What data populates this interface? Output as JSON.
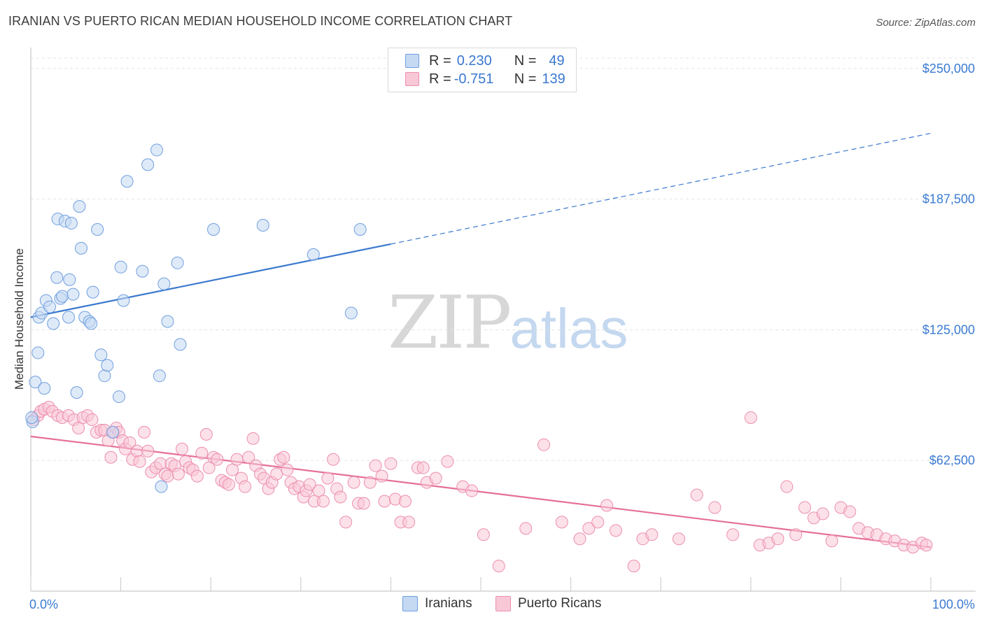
{
  "title": "IRANIAN VS PUERTO RICAN MEDIAN HOUSEHOLD INCOME CORRELATION CHART",
  "source": "Source: ZipAtlas.com",
  "watermark": {
    "zip": "ZIP",
    "atlas": "atlas"
  },
  "legend": {
    "r_label": "R =",
    "n_label": "N =",
    "series": [
      {
        "name": "Iranians",
        "r": "0.230",
        "n": "49",
        "fill": "#c5d9f3",
        "stroke": "#6f9fdf"
      },
      {
        "name": "Puerto Ricans",
        "r": "-0.751",
        "n": "139",
        "fill": "#f9c8d7",
        "stroke": "#ec8eaf"
      }
    ]
  },
  "chart_data": {
    "type": "scatter",
    "title": "IRANIAN VS PUERTO RICAN MEDIAN HOUSEHOLD INCOME CORRELATION CHART",
    "xlabel": "",
    "ylabel": "Median Household Income",
    "xlim": [
      0,
      100
    ],
    "ylim": [
      0,
      260000
    ],
    "x_tick_labels": [
      "0.0%",
      "100.0%"
    ],
    "y_ticks": [
      62500,
      125000,
      187500,
      250000
    ],
    "y_tick_labels": [
      "$62,500",
      "$125,000",
      "$187,500",
      "$250,000"
    ],
    "grid": true,
    "series": [
      {
        "name": "Iranians",
        "color": "#3a78cf",
        "trend": {
          "x0": 0,
          "y0": 131000,
          "x1": 40,
          "y1": 166000,
          "x_extend": 100,
          "y_extend": 219000
        },
        "points": [
          [
            0.2,
            81000
          ],
          [
            0.5,
            100000
          ],
          [
            0.8,
            114000
          ],
          [
            0.9,
            131000
          ],
          [
            1.2,
            133000
          ],
          [
            1.5,
            97000
          ],
          [
            1.7,
            139000
          ],
          [
            2.1,
            136000
          ],
          [
            2.5,
            128000
          ],
          [
            2.9,
            150000
          ],
          [
            3.0,
            178000
          ],
          [
            3.3,
            140000
          ],
          [
            3.5,
            141000
          ],
          [
            3.8,
            177000
          ],
          [
            4.2,
            131000
          ],
          [
            4.3,
            149000
          ],
          [
            4.5,
            176000
          ],
          [
            4.7,
            142000
          ],
          [
            5.1,
            95000
          ],
          [
            5.4,
            184000
          ],
          [
            5.6,
            164000
          ],
          [
            6.0,
            131000
          ],
          [
            6.5,
            129000
          ],
          [
            6.7,
            128000
          ],
          [
            6.9,
            143000
          ],
          [
            7.4,
            173000
          ],
          [
            7.8,
            113000
          ],
          [
            8.2,
            103000
          ],
          [
            8.5,
            108000
          ],
          [
            9.1,
            76000
          ],
          [
            9.8,
            93000
          ],
          [
            10.0,
            155000
          ],
          [
            10.3,
            139000
          ],
          [
            10.7,
            196000
          ],
          [
            12.4,
            153000
          ],
          [
            13.0,
            204000
          ],
          [
            14.0,
            211000
          ],
          [
            14.3,
            103000
          ],
          [
            14.5,
            50000
          ],
          [
            14.8,
            147000
          ],
          [
            15.2,
            129000
          ],
          [
            16.3,
            157000
          ],
          [
            16.6,
            118000
          ],
          [
            20.3,
            173000
          ],
          [
            25.8,
            175000
          ],
          [
            31.4,
            161000
          ],
          [
            35.6,
            133000
          ],
          [
            36.6,
            173000
          ],
          [
            0.1,
            83000
          ]
        ]
      },
      {
        "name": "Puerto Ricans",
        "color": "#e56f98",
        "trend": {
          "x0": 0,
          "y0": 74000,
          "x1": 100,
          "y1": 21000
        },
        "points": [
          [
            0.3,
            82000
          ],
          [
            0.8,
            84000
          ],
          [
            1.1,
            86000
          ],
          [
            1.5,
            87000
          ],
          [
            2.0,
            88000
          ],
          [
            2.4,
            86000
          ],
          [
            3.0,
            84000
          ],
          [
            3.5,
            83000
          ],
          [
            4.2,
            84000
          ],
          [
            4.8,
            82000
          ],
          [
            5.3,
            78000
          ],
          [
            5.8,
            83000
          ],
          [
            6.3,
            84000
          ],
          [
            6.8,
            82000
          ],
          [
            7.3,
            76000
          ],
          [
            7.8,
            77000
          ],
          [
            8.2,
            77000
          ],
          [
            8.6,
            72000
          ],
          [
            8.9,
            64000
          ],
          [
            9.2,
            76000
          ],
          [
            9.5,
            78000
          ],
          [
            9.8,
            76000
          ],
          [
            10.2,
            72000
          ],
          [
            10.5,
            68000
          ],
          [
            11.0,
            71000
          ],
          [
            11.3,
            63000
          ],
          [
            11.8,
            67000
          ],
          [
            12.1,
            62000
          ],
          [
            12.6,
            76000
          ],
          [
            13.0,
            67000
          ],
          [
            13.4,
            57000
          ],
          [
            13.9,
            59000
          ],
          [
            14.4,
            61000
          ],
          [
            14.9,
            56000
          ],
          [
            15.2,
            55000
          ],
          [
            15.6,
            61000
          ],
          [
            16.0,
            60000
          ],
          [
            16.4,
            56000
          ],
          [
            16.8,
            68000
          ],
          [
            17.2,
            62000
          ],
          [
            17.6,
            59000
          ],
          [
            18.0,
            58000
          ],
          [
            18.5,
            55000
          ],
          [
            19.0,
            66000
          ],
          [
            19.5,
            75000
          ],
          [
            19.8,
            59000
          ],
          [
            20.3,
            64000
          ],
          [
            20.7,
            63000
          ],
          [
            21.2,
            53000
          ],
          [
            21.6,
            52000
          ],
          [
            22.0,
            51000
          ],
          [
            22.4,
            58000
          ],
          [
            22.9,
            63000
          ],
          [
            23.4,
            54000
          ],
          [
            23.8,
            50000
          ],
          [
            24.2,
            64000
          ],
          [
            24.7,
            73000
          ],
          [
            25.0,
            60000
          ],
          [
            25.5,
            56000
          ],
          [
            25.9,
            54000
          ],
          [
            26.4,
            49000
          ],
          [
            26.8,
            52000
          ],
          [
            27.3,
            56000
          ],
          [
            27.7,
            63000
          ],
          [
            28.1,
            64000
          ],
          [
            28.5,
            58000
          ],
          [
            28.9,
            52000
          ],
          [
            29.3,
            49000
          ],
          [
            29.8,
            50000
          ],
          [
            30.3,
            45000
          ],
          [
            30.6,
            48000
          ],
          [
            31.0,
            51000
          ],
          [
            31.5,
            43000
          ],
          [
            32.0,
            48000
          ],
          [
            32.5,
            43000
          ],
          [
            33.0,
            54000
          ],
          [
            33.6,
            63000
          ],
          [
            34.0,
            49000
          ],
          [
            34.4,
            45000
          ],
          [
            35.0,
            33000
          ],
          [
            35.9,
            52000
          ],
          [
            36.4,
            42000
          ],
          [
            37.0,
            42000
          ],
          [
            37.7,
            52000
          ],
          [
            38.3,
            60000
          ],
          [
            39.0,
            55000
          ],
          [
            39.3,
            43000
          ],
          [
            40.0,
            61000
          ],
          [
            40.5,
            44000
          ],
          [
            41.1,
            33000
          ],
          [
            41.6,
            43000
          ],
          [
            42.0,
            33000
          ],
          [
            43.0,
            59000
          ],
          [
            43.6,
            59000
          ],
          [
            44.0,
            52000
          ],
          [
            45.0,
            54000
          ],
          [
            46.3,
            62000
          ],
          [
            48.0,
            50000
          ],
          [
            49.0,
            48000
          ],
          [
            50.3,
            27000
          ],
          [
            52.0,
            12000
          ],
          [
            55.0,
            30000
          ],
          [
            57.0,
            70000
          ],
          [
            59.0,
            33000
          ],
          [
            61.0,
            25000
          ],
          [
            62.0,
            30000
          ],
          [
            63.0,
            33000
          ],
          [
            64.0,
            41000
          ],
          [
            65.0,
            29000
          ],
          [
            67.0,
            12000
          ],
          [
            68.0,
            25000
          ],
          [
            69.0,
            27000
          ],
          [
            72.0,
            25000
          ],
          [
            74.0,
            46000
          ],
          [
            76.0,
            40000
          ],
          [
            78.0,
            27000
          ],
          [
            80.0,
            83000
          ],
          [
            81.0,
            22000
          ],
          [
            82.0,
            23000
          ],
          [
            83.0,
            25000
          ],
          [
            84.0,
            50000
          ],
          [
            85.0,
            27000
          ],
          [
            86.0,
            40000
          ],
          [
            87.0,
            35000
          ],
          [
            88.0,
            37000
          ],
          [
            89.0,
            24000
          ],
          [
            90.0,
            40000
          ],
          [
            91.0,
            38000
          ],
          [
            92.0,
            30000
          ],
          [
            93.0,
            28000
          ],
          [
            94.0,
            27000
          ],
          [
            95.0,
            25000
          ],
          [
            96.0,
            24000
          ],
          [
            97.0,
            22000
          ],
          [
            98.0,
            21000
          ],
          [
            99.0,
            23000
          ],
          [
            99.5,
            22000
          ]
        ]
      }
    ]
  }
}
